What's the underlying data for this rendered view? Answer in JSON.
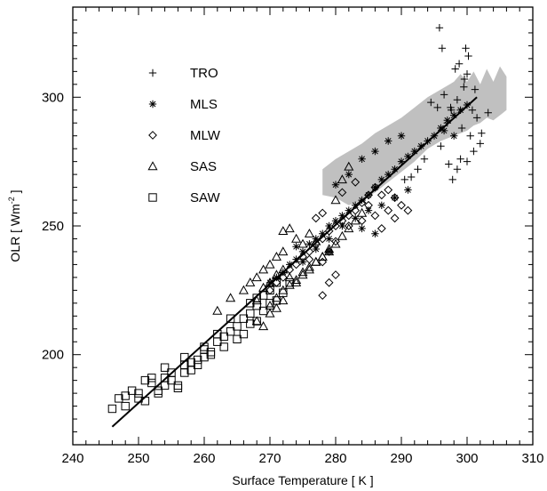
{
  "chart_data": {
    "type": "scatter",
    "xlabel": "Surface Temperature [ K ]",
    "ylabel": {
      "prefix": "OLR  [ Wm",
      "sup": "-2",
      "suffix": " ]"
    },
    "xlim": [
      240,
      310
    ],
    "ylim": [
      165,
      335
    ],
    "xticks": [
      240,
      250,
      260,
      270,
      280,
      290,
      300,
      310
    ],
    "yticks": [
      200,
      250,
      300
    ],
    "grid": false,
    "legend_position": "top-left",
    "colors": {
      "points": "#000000",
      "band": "#c0c0c0",
      "fit": "#000000"
    },
    "fit_line": {
      "x": [
        246,
        301.5
      ],
      "y": [
        172,
        300
      ]
    },
    "shaded_band": {
      "upper": [
        [
          278,
          272
        ],
        [
          280,
          276
        ],
        [
          282,
          279
        ],
        [
          284,
          282
        ],
        [
          286,
          286
        ],
        [
          288,
          289
        ],
        [
          290,
          292
        ],
        [
          292,
          296
        ],
        [
          294,
          300
        ],
        [
          296,
          303
        ],
        [
          298,
          306
        ],
        [
          299,
          309
        ],
        [
          300,
          306
        ],
        [
          301,
          310
        ],
        [
          302,
          305
        ],
        [
          303,
          311
        ],
        [
          304,
          306
        ],
        [
          305,
          312
        ],
        [
          306,
          308
        ],
        [
          306,
          305
        ]
      ],
      "lower": [
        [
          306,
          295
        ],
        [
          305,
          293
        ],
        [
          304,
          291
        ],
        [
          303,
          292
        ],
        [
          302,
          290
        ],
        [
          301,
          289
        ],
        [
          300,
          287
        ],
        [
          298,
          285
        ],
        [
          296,
          283
        ],
        [
          294,
          280
        ],
        [
          292,
          275
        ],
        [
          290,
          271
        ],
        [
          288,
          267
        ],
        [
          286,
          263
        ],
        [
          284,
          260
        ],
        [
          282,
          258
        ],
        [
          280,
          261
        ],
        [
          278,
          262
        ]
      ]
    },
    "series": [
      {
        "name": "TRO",
        "marker": "plus",
        "points": [
          [
            295.8,
            327
          ],
          [
            296.2,
            319
          ],
          [
            294.5,
            298
          ],
          [
            295.5,
            296
          ],
          [
            296.5,
            301
          ],
          [
            297.5,
            296
          ],
          [
            298.2,
            311
          ],
          [
            298.8,
            313
          ],
          [
            299.8,
            319
          ],
          [
            300.2,
            316
          ],
          [
            300,
            309
          ],
          [
            299.5,
            304
          ],
          [
            298.5,
            299
          ],
          [
            297.6,
            295
          ],
          [
            297,
            290
          ],
          [
            299.2,
            288
          ],
          [
            300.5,
            285
          ],
          [
            301.5,
            292
          ],
          [
            302.2,
            286
          ],
          [
            303.2,
            294
          ],
          [
            301,
            279
          ],
          [
            302,
            282
          ],
          [
            299,
            276
          ],
          [
            300,
            275
          ],
          [
            298.5,
            272
          ],
          [
            297.8,
            268
          ],
          [
            297.2,
            274
          ],
          [
            292.5,
            272
          ],
          [
            291.5,
            269
          ],
          [
            290.5,
            268
          ],
          [
            293.5,
            276
          ],
          [
            296,
            281
          ],
          [
            300.8,
            295
          ],
          [
            301.2,
            303
          ],
          [
            299.6,
            307
          ]
        ]
      },
      {
        "name": "MLS",
        "marker": "asterisk",
        "points": [
          [
            296,
            288
          ],
          [
            297,
            291
          ],
          [
            298,
            293
          ],
          [
            299,
            295
          ],
          [
            300,
            297
          ],
          [
            298,
            285
          ],
          [
            296.5,
            287
          ],
          [
            295,
            285
          ],
          [
            294,
            283
          ],
          [
            293,
            281
          ],
          [
            292,
            279
          ],
          [
            291,
            277
          ],
          [
            290,
            275
          ],
          [
            289,
            272
          ],
          [
            288,
            270
          ],
          [
            287,
            268
          ],
          [
            286,
            265
          ],
          [
            285,
            262
          ],
          [
            284,
            260
          ],
          [
            283,
            258
          ],
          [
            282,
            256
          ],
          [
            281,
            254
          ],
          [
            280,
            252
          ],
          [
            279,
            250
          ],
          [
            278,
            247
          ],
          [
            277,
            245
          ],
          [
            276,
            243
          ],
          [
            275,
            240
          ],
          [
            274,
            237
          ],
          [
            273,
            235
          ],
          [
            272,
            232
          ],
          [
            271,
            230
          ],
          [
            270,
            228
          ],
          [
            290,
            285
          ],
          [
            288,
            283
          ],
          [
            286,
            279
          ],
          [
            284,
            276
          ],
          [
            282,
            270
          ],
          [
            280,
            266
          ],
          [
            291,
            264
          ],
          [
            289,
            261
          ],
          [
            287,
            258
          ],
          [
            285,
            256
          ],
          [
            283,
            253
          ],
          [
            281,
            250
          ],
          [
            279,
            245
          ],
          [
            277,
            241
          ],
          [
            275,
            236
          ],
          [
            284,
            249
          ],
          [
            286,
            247
          ],
          [
            279,
            240
          ],
          [
            274,
            242
          ]
        ]
      },
      {
        "name": "MLW",
        "marker": "diamond",
        "points": [
          [
            286,
            265
          ],
          [
            285,
            262
          ],
          [
            284,
            259
          ],
          [
            283,
            256
          ],
          [
            282,
            254
          ],
          [
            281,
            252
          ],
          [
            280,
            250
          ],
          [
            279,
            248
          ],
          [
            278,
            245
          ],
          [
            277,
            243
          ],
          [
            276,
            240
          ],
          [
            275,
            238
          ],
          [
            274,
            235
          ],
          [
            273,
            233
          ],
          [
            272,
            230
          ],
          [
            271,
            228
          ],
          [
            270,
            225
          ],
          [
            287,
            262
          ],
          [
            288,
            264
          ],
          [
            289,
            261
          ],
          [
            290,
            258
          ],
          [
            288,
            256
          ],
          [
            286,
            254
          ],
          [
            284,
            252
          ],
          [
            282,
            250
          ],
          [
            280,
            244
          ],
          [
            279,
            240
          ],
          [
            278,
            236
          ],
          [
            280,
            231
          ],
          [
            279,
            228
          ],
          [
            278,
            223
          ],
          [
            276,
            237
          ],
          [
            277,
            253
          ],
          [
            278,
            255
          ],
          [
            287,
            249
          ],
          [
            289,
            253
          ],
          [
            291,
            256
          ],
          [
            285,
            258
          ],
          [
            283,
            267
          ],
          [
            281,
            263
          ]
        ]
      },
      {
        "name": "SAS",
        "marker": "triangle",
        "points": [
          [
            262,
            217
          ],
          [
            264,
            222
          ],
          [
            266,
            225
          ],
          [
            267,
            228
          ],
          [
            268,
            230
          ],
          [
            269,
            233
          ],
          [
            270,
            235
          ],
          [
            271,
            238
          ],
          [
            272,
            240
          ],
          [
            272,
            248
          ],
          [
            273,
            249
          ],
          [
            274,
            245
          ],
          [
            275,
            243
          ],
          [
            276,
            247
          ],
          [
            277,
            244
          ],
          [
            268,
            221
          ],
          [
            269,
            226
          ],
          [
            270,
            228
          ],
          [
            271,
            231
          ],
          [
            272,
            233
          ],
          [
            273,
            230
          ],
          [
            274,
            228
          ],
          [
            275,
            232
          ],
          [
            276,
            234
          ],
          [
            277,
            236
          ],
          [
            278,
            238
          ],
          [
            279,
            240
          ],
          [
            280,
            243
          ],
          [
            281,
            246
          ],
          [
            282,
            249
          ],
          [
            283,
            252
          ],
          [
            284,
            255
          ],
          [
            280,
            260
          ],
          [
            281,
            268
          ],
          [
            282,
            273
          ],
          [
            270,
            219
          ],
          [
            271,
            222
          ],
          [
            272,
            225
          ],
          [
            273,
            227
          ],
          [
            274,
            229
          ],
          [
            275,
            231
          ],
          [
            276,
            233
          ],
          [
            277,
            236
          ],
          [
            278,
            238
          ],
          [
            279,
            241
          ],
          [
            268,
            213
          ],
          [
            269,
            211
          ],
          [
            270,
            216
          ],
          [
            271,
            218
          ],
          [
            272,
            221
          ]
        ]
      },
      {
        "name": "SAW",
        "marker": "square",
        "points": [
          [
            246,
            179
          ],
          [
            247,
            183
          ],
          [
            248,
            180
          ],
          [
            249,
            186
          ],
          [
            250,
            185
          ],
          [
            251,
            182
          ],
          [
            251,
            190
          ],
          [
            252,
            189
          ],
          [
            253,
            185
          ],
          [
            254,
            188
          ],
          [
            254,
            195
          ],
          [
            255,
            190
          ],
          [
            256,
            187
          ],
          [
            257,
            193
          ],
          [
            257,
            199
          ],
          [
            258,
            194
          ],
          [
            259,
            196
          ],
          [
            260,
            199
          ],
          [
            260,
            203
          ],
          [
            261,
            200
          ],
          [
            262,
            205
          ],
          [
            263,
            207
          ],
          [
            264,
            209
          ],
          [
            264,
            214
          ],
          [
            265,
            211
          ],
          [
            266,
            214
          ],
          [
            267,
            216
          ],
          [
            267,
            220
          ],
          [
            268,
            219
          ],
          [
            268,
            213
          ],
          [
            269,
            223
          ],
          [
            270,
            225
          ],
          [
            270,
            220
          ],
          [
            271,
            221
          ],
          [
            272,
            224
          ],
          [
            273,
            228
          ],
          [
            253,
            186
          ],
          [
            256,
            188
          ],
          [
            258,
            197
          ],
          [
            260,
            202
          ],
          [
            262,
            208
          ],
          [
            266,
            208
          ],
          [
            268,
            222
          ],
          [
            271,
            228
          ],
          [
            252,
            191
          ],
          [
            255,
            193
          ],
          [
            257,
            196
          ],
          [
            259,
            198
          ],
          [
            261,
            201
          ],
          [
            263,
            203
          ],
          [
            265,
            206
          ],
          [
            267,
            212
          ],
          [
            269,
            217
          ],
          [
            248,
            184
          ],
          [
            250,
            183
          ],
          [
            254,
            191
          ]
        ]
      }
    ]
  }
}
